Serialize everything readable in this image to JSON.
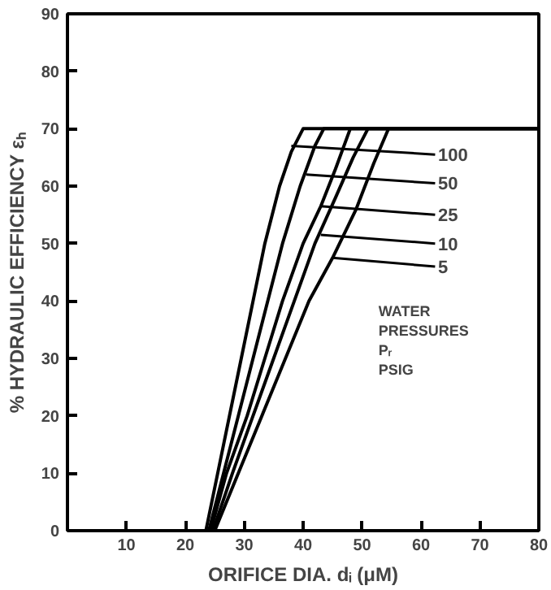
{
  "chart_data": {
    "type": "line",
    "xlabel": "ORIFICE DIA. dᵢ (μM)",
    "ylabel": "% HYDRAULIC EFFICIENCY εₕ",
    "xlim": [
      0,
      80
    ],
    "ylim": [
      0,
      90
    ],
    "xticks": [
      10,
      20,
      30,
      40,
      50,
      60,
      70,
      80
    ],
    "yticks": [
      0,
      10,
      20,
      30,
      40,
      50,
      60,
      70,
      80,
      90
    ],
    "grid": false,
    "marker": "none",
    "line_style": "solid",
    "series": [
      {
        "color": "#000000",
        "x": [
          23.5,
          25.5,
          27.5,
          29.5,
          31.5,
          33.5,
          36,
          38,
          40,
          80
        ],
        "values": [
          0,
          10,
          20,
          30,
          40,
          50,
          60,
          66,
          70,
          70
        ]
      },
      {
        "color": "#000000",
        "x": [
          24,
          26.5,
          29,
          31.5,
          34,
          36.5,
          39.5,
          42,
          43.5,
          80
        ],
        "values": [
          0,
          10,
          20,
          30,
          40,
          50,
          60,
          67,
          70,
          70
        ]
      },
      {
        "color": "#000000",
        "x": [
          24.3,
          27,
          30.5,
          33.5,
          36.5,
          40,
          43,
          45.5,
          48,
          80
        ],
        "values": [
          0,
          10,
          20,
          30,
          40,
          50,
          56.5,
          63,
          70,
          70
        ]
      },
      {
        "color": "#000000",
        "x": [
          24.7,
          28,
          31.5,
          35,
          38.5,
          42,
          45.5,
          48.5,
          51,
          80
        ],
        "values": [
          0,
          10,
          20,
          30,
          40,
          50,
          58,
          65,
          70,
          70
        ]
      },
      {
        "color": "#000000",
        "x": [
          25,
          29,
          33,
          37,
          41,
          45,
          49,
          52,
          54.5,
          80
        ],
        "values": [
          0,
          10,
          20,
          30,
          40,
          47.5,
          56,
          64,
          70,
          70
        ]
      }
    ],
    "annotations": [
      {
        "text": "100",
        "x": 38,
        "y": 67
      },
      {
        "text": "50",
        "x": 40.5,
        "y": 62
      },
      {
        "text": "25",
        "x": 43,
        "y": 56.5
      },
      {
        "text": "10",
        "x": 43,
        "y": 51.5
      },
      {
        "text": "5",
        "x": 45,
        "y": 47.5
      },
      "WATER\nPRESSURES\nPᵣ\nPSIG"
    ]
  }
}
